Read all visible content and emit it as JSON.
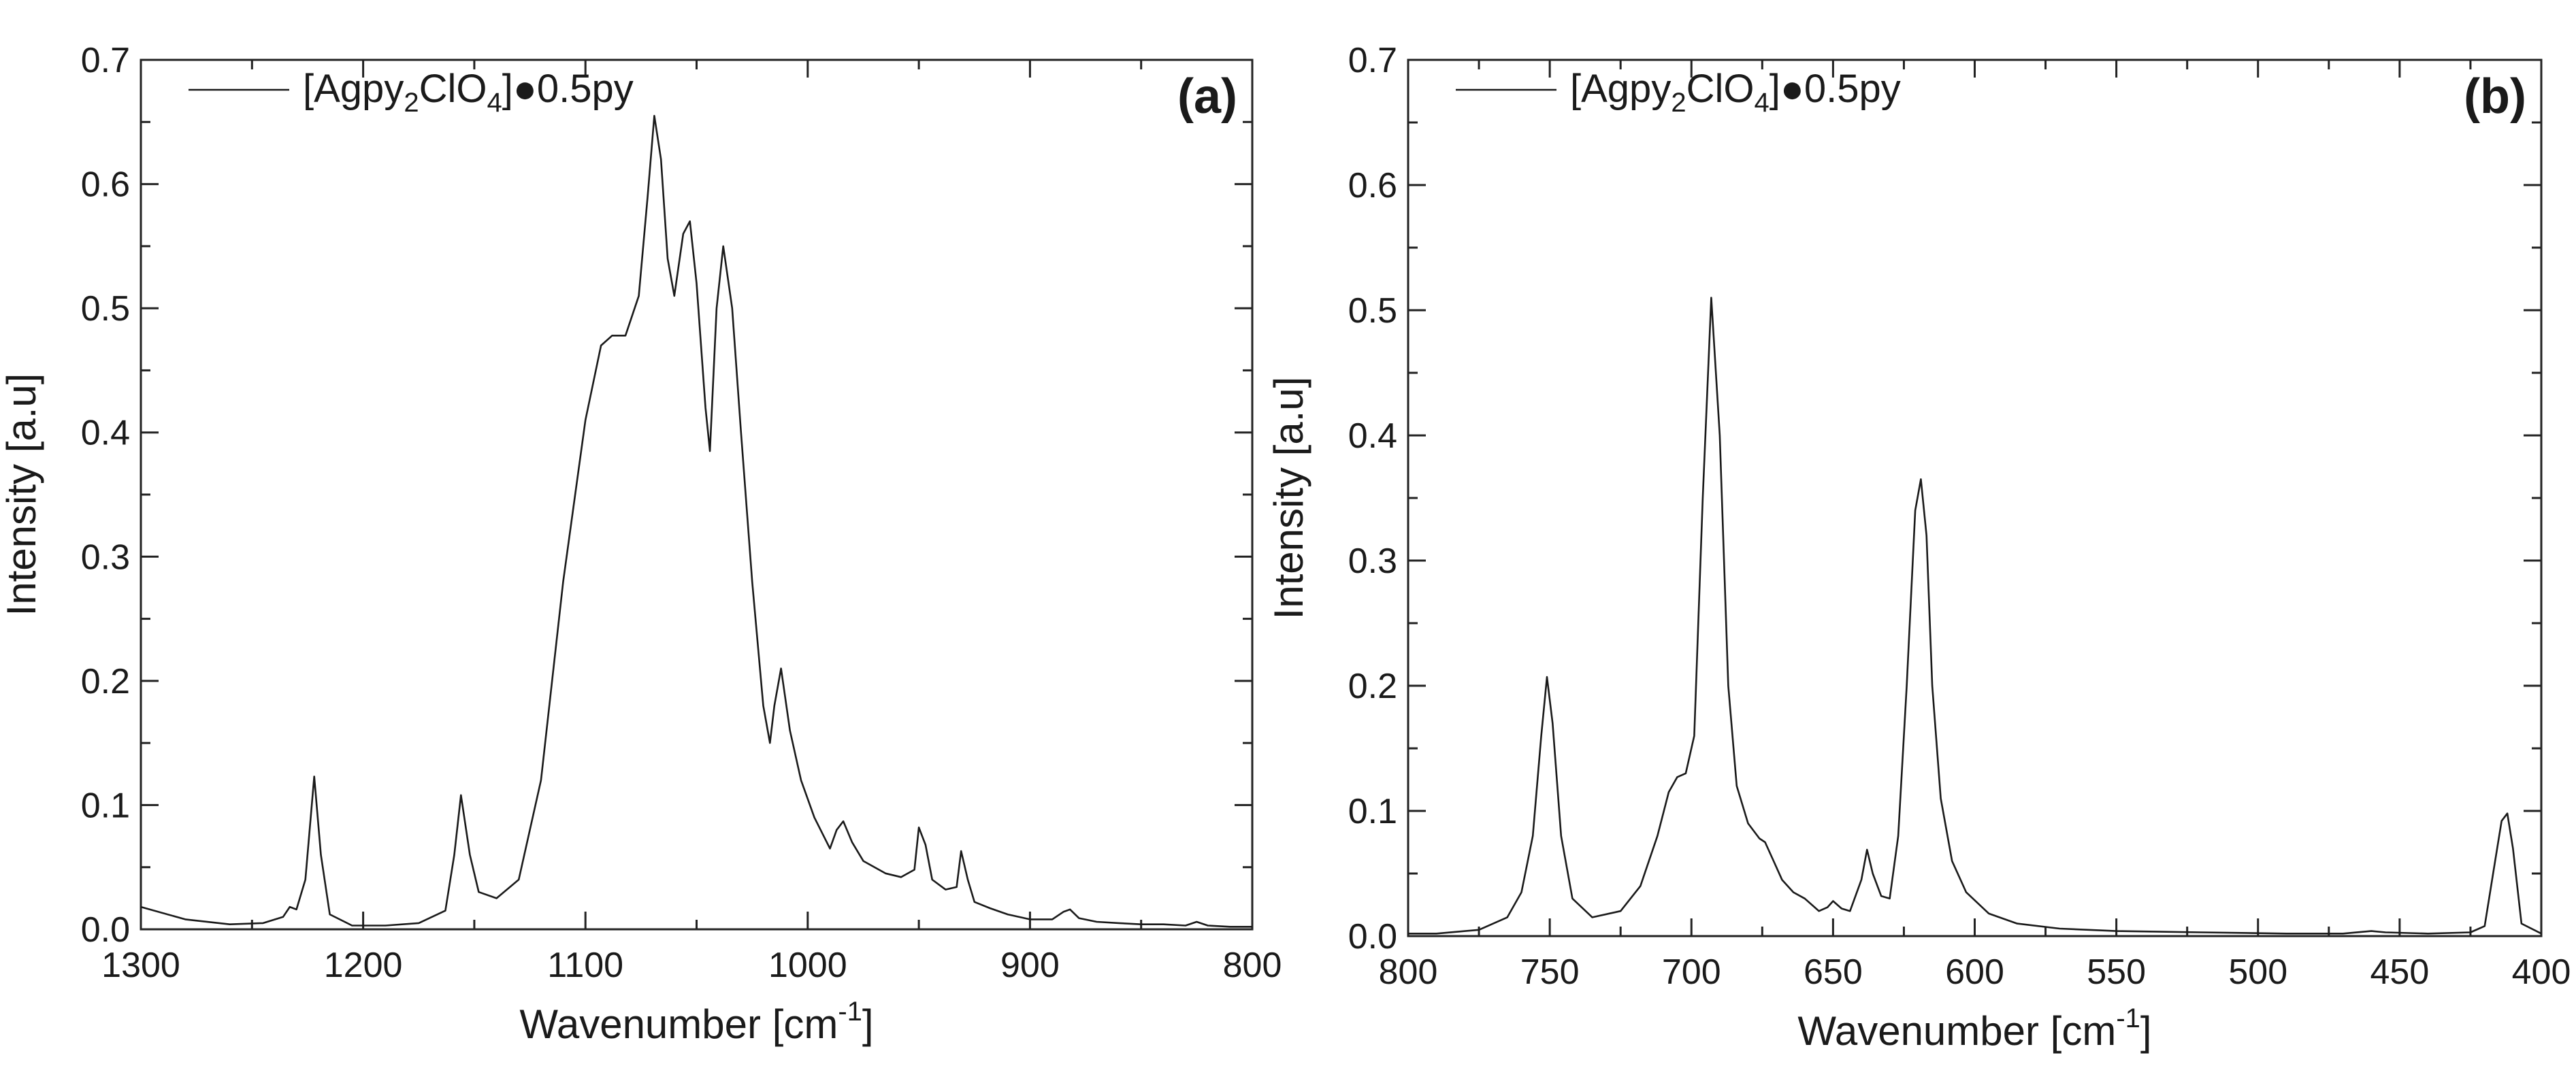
{
  "chart_data": [
    {
      "type": "line",
      "panel_label": "(a)",
      "legend": {
        "placement": "top-left",
        "parts": [
          "[Agpy",
          "2",
          "ClO",
          "4",
          "]●0.5py"
        ]
      },
      "xlabel": {
        "text": "Wavenumber [cm",
        "sup": "-1",
        "suffix": "]"
      },
      "ylabel": "Intensity [a.u]",
      "xlim": [
        1300,
        800
      ],
      "ylim": [
        0,
        0.7
      ],
      "x_ticks": [
        "1300",
        "1200",
        "1100",
        "1000",
        "900",
        "800"
      ],
      "y_ticks": [
        "0.0",
        "0.1",
        "0.2",
        "0.3",
        "0.4",
        "0.5",
        "0.6",
        "0.7"
      ],
      "series": [
        {
          "name": "[Agpy2ClO4]●0.5py",
          "x": [
            1300,
            1280,
            1260,
            1245,
            1236,
            1233,
            1230,
            1226,
            1222,
            1219,
            1215,
            1205,
            1190,
            1175,
            1163,
            1159,
            1156,
            1152,
            1148,
            1140,
            1130,
            1120,
            1110,
            1100,
            1093,
            1088,
            1082,
            1076,
            1072,
            1069,
            1066,
            1063,
            1060,
            1056,
            1053,
            1050,
            1046,
            1044,
            1041,
            1038,
            1034,
            1030,
            1025,
            1020,
            1017,
            1015,
            1012,
            1008,
            1003,
            997,
            990,
            987,
            984,
            980,
            975,
            965,
            958,
            952,
            950,
            947,
            944,
            938,
            933,
            931,
            928,
            925,
            918,
            910,
            900,
            890,
            885,
            882,
            878,
            870,
            860,
            850,
            840,
            830,
            825,
            820,
            810,
            800
          ],
          "y": [
            0.018,
            0.008,
            0.004,
            0.005,
            0.01,
            0.018,
            0.016,
            0.04,
            0.123,
            0.06,
            0.012,
            0.003,
            0.003,
            0.005,
            0.015,
            0.06,
            0.108,
            0.06,
            0.03,
            0.025,
            0.04,
            0.12,
            0.28,
            0.41,
            0.47,
            0.478,
            0.478,
            0.51,
            0.59,
            0.655,
            0.62,
            0.54,
            0.51,
            0.56,
            0.57,
            0.52,
            0.42,
            0.385,
            0.5,
            0.55,
            0.5,
            0.4,
            0.28,
            0.18,
            0.15,
            0.18,
            0.21,
            0.16,
            0.12,
            0.09,
            0.065,
            0.08,
            0.087,
            0.07,
            0.055,
            0.045,
            0.042,
            0.048,
            0.082,
            0.068,
            0.04,
            0.032,
            0.034,
            0.063,
            0.04,
            0.022,
            0.017,
            0.012,
            0.008,
            0.008,
            0.014,
            0.016,
            0.009,
            0.006,
            0.005,
            0.004,
            0.004,
            0.003,
            0.006,
            0.003,
            0.002,
            0.002
          ]
        }
      ]
    },
    {
      "type": "line",
      "panel_label": "(b)",
      "legend": {
        "placement": "top-left",
        "parts": [
          "[Agpy",
          "2",
          "ClO",
          "4",
          "]●0.5py"
        ]
      },
      "xlabel": {
        "text": "Wavenumber [cm",
        "sup": "-1",
        "suffix": "]"
      },
      "ylabel": "Intensity [a.u]",
      "xlim": [
        800,
        400
      ],
      "ylim": [
        0,
        0.7
      ],
      "x_ticks": [
        "800",
        "750",
        "700",
        "650",
        "600",
        "550",
        "500",
        "450",
        "400"
      ],
      "y_ticks": [
        "0.0",
        "0.1",
        "0.2",
        "0.3",
        "0.4",
        "0.5",
        "0.6",
        "0.7"
      ],
      "series": [
        {
          "name": "[Agpy2ClO4]●0.5py",
          "x": [
            800,
            790,
            775,
            765,
            760,
            756,
            753,
            751,
            749,
            746,
            742,
            735,
            725,
            718,
            712,
            708,
            705,
            702,
            699,
            696,
            693,
            690,
            687,
            684,
            680,
            676,
            674,
            671,
            668,
            664,
            660,
            655,
            652,
            650,
            647,
            644,
            640,
            638,
            636,
            633,
            630,
            627,
            624,
            621,
            619,
            617,
            615,
            612,
            608,
            603,
            595,
            585,
            570,
            550,
            520,
            490,
            470,
            460,
            455,
            440,
            425,
            420,
            417,
            414,
            412,
            410,
            407,
            400
          ],
          "y": [
            0.002,
            0.002,
            0.005,
            0.015,
            0.035,
            0.08,
            0.16,
            0.207,
            0.17,
            0.08,
            0.03,
            0.015,
            0.02,
            0.04,
            0.08,
            0.115,
            0.127,
            0.13,
            0.16,
            0.35,
            0.51,
            0.4,
            0.2,
            0.12,
            0.09,
            0.078,
            0.075,
            0.06,
            0.045,
            0.035,
            0.03,
            0.02,
            0.023,
            0.028,
            0.022,
            0.02,
            0.045,
            0.069,
            0.05,
            0.032,
            0.03,
            0.08,
            0.2,
            0.34,
            0.365,
            0.32,
            0.2,
            0.11,
            0.06,
            0.035,
            0.018,
            0.01,
            0.006,
            0.004,
            0.003,
            0.002,
            0.002,
            0.004,
            0.003,
            0.002,
            0.003,
            0.008,
            0.05,
            0.092,
            0.098,
            0.07,
            0.01,
            0.002
          ]
        }
      ]
    }
  ]
}
